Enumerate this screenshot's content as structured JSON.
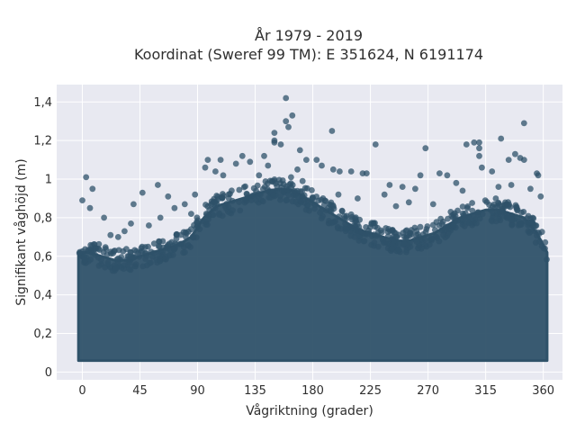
{
  "chart_data": {
    "type": "scatter",
    "title_line1": "År 1979 - 2019",
    "title_line2": "Koordinat (Sweref 99 TM): E 351624, N 6191174",
    "xlabel": "Vågriktning (grader)",
    "ylabel": "Signifikant våghöjd (m)",
    "xlim": [
      -20,
      375
    ],
    "ylim": [
      -0.04,
      1.49
    ],
    "x_ticks": [
      {
        "value": 0,
        "label": "0"
      },
      {
        "value": 45,
        "label": "45"
      },
      {
        "value": 90,
        "label": "90"
      },
      {
        "value": 135,
        "label": "135"
      },
      {
        "value": 180,
        "label": "180"
      },
      {
        "value": 225,
        "label": "225"
      },
      {
        "value": 270,
        "label": "270"
      },
      {
        "value": 315,
        "label": "315"
      },
      {
        "value": 360,
        "label": "360"
      }
    ],
    "y_ticks": [
      {
        "value": 0,
        "label": "0"
      },
      {
        "value": 0.2,
        "label": "0,2"
      },
      {
        "value": 0.4,
        "label": "0,4"
      },
      {
        "value": 0.6,
        "label": "0,6"
      },
      {
        "value": 0.8,
        "label": "0,8"
      },
      {
        "value": 1.0,
        "label": "1"
      },
      {
        "value": 1.2,
        "label": "1,2"
      },
      {
        "value": 1.4,
        "label": "1,4"
      }
    ],
    "grid": true,
    "marker_color": "#2f5269",
    "plot_background": "#e8e9f1",
    "dense_band": [
      [
        -3,
        0.06,
        0.62
      ],
      [
        5,
        0.06,
        0.62
      ],
      [
        15,
        0.06,
        0.6
      ],
      [
        25,
        0.06,
        0.58
      ],
      [
        35,
        0.06,
        0.58
      ],
      [
        45,
        0.06,
        0.6
      ],
      [
        55,
        0.06,
        0.62
      ],
      [
        65,
        0.06,
        0.64
      ],
      [
        75,
        0.06,
        0.66
      ],
      [
        85,
        0.06,
        0.7
      ],
      [
        95,
        0.06,
        0.8
      ],
      [
        105,
        0.06,
        0.86
      ],
      [
        115,
        0.06,
        0.88
      ],
      [
        125,
        0.06,
        0.9
      ],
      [
        135,
        0.06,
        0.92
      ],
      [
        145,
        0.06,
        0.94
      ],
      [
        155,
        0.06,
        0.95
      ],
      [
        165,
        0.06,
        0.94
      ],
      [
        175,
        0.06,
        0.9
      ],
      [
        185,
        0.06,
        0.86
      ],
      [
        195,
        0.06,
        0.82
      ],
      [
        205,
        0.06,
        0.78
      ],
      [
        215,
        0.06,
        0.74
      ],
      [
        225,
        0.06,
        0.72
      ],
      [
        235,
        0.06,
        0.7
      ],
      [
        245,
        0.06,
        0.68
      ],
      [
        255,
        0.06,
        0.68
      ],
      [
        265,
        0.06,
        0.7
      ],
      [
        275,
        0.06,
        0.72
      ],
      [
        285,
        0.06,
        0.76
      ],
      [
        295,
        0.06,
        0.8
      ],
      [
        305,
        0.06,
        0.82
      ],
      [
        315,
        0.06,
        0.84
      ],
      [
        325,
        0.06,
        0.84
      ],
      [
        335,
        0.06,
        0.82
      ],
      [
        345,
        0.06,
        0.8
      ],
      [
        355,
        0.06,
        0.72
      ],
      [
        363,
        0.06,
        0.62
      ]
    ],
    "outliers": [
      [
        159,
        1.42
      ],
      [
        345,
        1.29
      ],
      [
        164,
        1.33
      ],
      [
        159,
        1.3
      ],
      [
        161,
        1.27
      ],
      [
        150,
        1.24
      ],
      [
        150,
        1.2
      ],
      [
        150,
        1.19
      ],
      [
        155,
        1.18
      ],
      [
        170,
        1.15
      ],
      [
        195,
        1.25
      ],
      [
        229,
        1.18
      ],
      [
        268,
        1.16
      ],
      [
        300,
        1.18
      ],
      [
        306,
        1.19
      ],
      [
        310,
        1.19
      ],
      [
        310,
        1.16
      ],
      [
        327,
        1.21
      ],
      [
        338,
        1.13
      ],
      [
        333,
        1.1
      ],
      [
        342,
        1.11
      ],
      [
        345,
        1.1
      ],
      [
        310,
        1.12
      ],
      [
        312,
        1.06
      ],
      [
        320,
        1.04
      ],
      [
        355,
        1.03
      ],
      [
        356,
        1.02
      ],
      [
        3,
        1.01
      ],
      [
        8,
        0.95
      ],
      [
        0,
        0.89
      ],
      [
        6,
        0.85
      ],
      [
        40,
        0.87
      ],
      [
        47,
        0.93
      ],
      [
        59,
        0.97
      ],
      [
        67,
        0.91
      ],
      [
        72,
        0.85
      ],
      [
        80,
        0.87
      ],
      [
        88,
        0.92
      ],
      [
        96,
        1.06
      ],
      [
        98,
        1.1
      ],
      [
        104,
        1.04
      ],
      [
        108,
        1.1
      ],
      [
        110,
        1.02
      ],
      [
        120,
        1.08
      ],
      [
        125,
        1.12
      ],
      [
        131,
        1.09
      ],
      [
        142,
        1.12
      ],
      [
        145,
        1.07
      ],
      [
        175,
        1.1
      ],
      [
        183,
        1.1
      ],
      [
        187,
        1.07
      ],
      [
        196,
        1.05
      ],
      [
        201,
        1.04
      ],
      [
        210,
        1.04
      ],
      [
        219,
        1.03
      ],
      [
        222,
        1.03
      ],
      [
        240,
        0.97
      ],
      [
        250,
        0.96
      ],
      [
        260,
        0.95
      ],
      [
        264,
        1.02
      ],
      [
        279,
        1.03
      ],
      [
        285,
        1.02
      ],
      [
        292,
        0.98
      ],
      [
        297,
        0.94
      ],
      [
        17,
        0.8
      ],
      [
        22,
        0.71
      ],
      [
        28,
        0.7
      ],
      [
        33,
        0.73
      ],
      [
        38,
        0.77
      ],
      [
        52,
        0.76
      ],
      [
        61,
        0.8
      ],
      [
        85,
        0.82
      ],
      [
        200,
        0.92
      ],
      [
        215,
        0.9
      ],
      [
        236,
        0.92
      ],
      [
        245,
        0.86
      ],
      [
        255,
        0.88
      ],
      [
        274,
        0.87
      ],
      [
        325,
        0.96
      ],
      [
        335,
        0.97
      ],
      [
        350,
        0.95
      ],
      [
        358,
        0.91
      ],
      [
        138,
        1.02
      ],
      [
        163,
        1.01
      ],
      [
        168,
        1.05
      ],
      [
        172,
        0.99
      ]
    ]
  }
}
